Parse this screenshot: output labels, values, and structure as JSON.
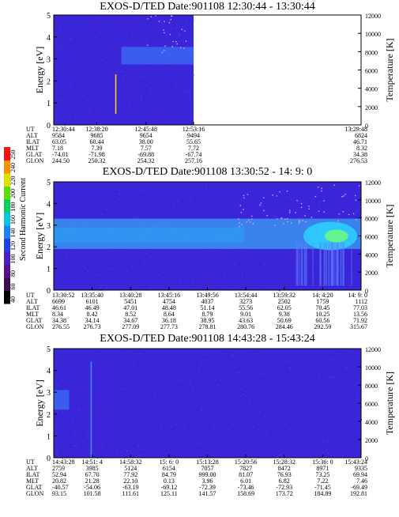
{
  "chart_data": {
    "type": "heatmap",
    "colorbar": {
      "label": "Second Harmonic Current",
      "ticks": [
        40,
        60,
        80,
        100,
        120,
        140,
        160,
        180,
        200,
        220,
        240,
        250
      ],
      "colors": [
        "#000000",
        "#3a0a52",
        "#5a0f8a",
        "#4a1fc8",
        "#2040e8",
        "#1a80ff",
        "#00c8e0",
        "#00d060",
        "#58e000",
        "#e0e000",
        "#ff9000",
        "#ff1010"
      ]
    },
    "panels": [
      {
        "title": "EXOS-D/TED   Date:901108   12:30:44 - 13:30:44",
        "ylabel": "Energy [eV]",
        "y2label": "Temperature [K]",
        "ylim": [
          0,
          5
        ],
        "yticks": [
          0,
          1,
          2,
          3,
          4,
          5
        ],
        "y2lim": [
          0,
          12000
        ],
        "y2ticks": [
          0,
          2000,
          4000,
          6000,
          8000,
          10000,
          12000
        ],
        "data_end_fraction": 0.455,
        "band": {
          "x": [
            0.22,
            0.455
          ],
          "energy_low": 2.75,
          "energy_high": 3.55,
          "color": "#3c64f0"
        },
        "ephemeris": {
          "labels": [
            "UT",
            "ALT",
            "ILAT",
            "MLT",
            "GLAT",
            "GLON"
          ],
          "columns": [
            [
              "12:30:44",
              "9584",
              "63.05",
              "7.18",
              "-74.01",
              "244.50"
            ],
            [
              "12:38:20",
              "9685",
              "60.44",
              "7.39",
              "-71.98",
              "250.32"
            ],
            [
              "12:45:48",
              "9654",
              "38.00",
              "7.57",
              "-69.88",
              "254.32"
            ],
            [
              "12:53:16",
              "9494",
              "55.65",
              "7.72",
              "-67.74",
              "257.16"
            ],
            [
              "13:29:48",
              "6824",
              "46.71",
              "8.32",
              "34.38",
              "276.53"
            ]
          ],
          "positions": [
            0,
            0.14,
            0.3,
            0.455,
            1
          ]
        }
      },
      {
        "title": "EXOS-D/TED   Date:901108   13:30:52 - 14: 9: 0",
        "ylabel": "Energy [eV]",
        "y2label": "Temperature [K]",
        "ylim": [
          0,
          5
        ],
        "yticks": [
          0,
          1,
          2,
          3,
          4,
          5
        ],
        "y2lim": [
          0,
          12000
        ],
        "y2ticks": [
          0,
          2000,
          4000,
          6000,
          8000,
          10000,
          12000
        ],
        "data_end_fraction": 1,
        "band": {
          "x": [
            0,
            1
          ],
          "energy_low": 1.9,
          "energy_high": 3.3,
          "color": "#3c8cf0"
        },
        "ephemeris": {
          "labels": [
            "UT",
            "ALT",
            "ILAT",
            "MLT",
            "GLAT",
            "GLON"
          ],
          "columns": [
            [
              "13:30:52",
              "6699",
              "46.61",
              "8.34",
              "34.38",
              "276.55"
            ],
            [
              "13:35:40",
              "6101",
              "46.49",
              "8.42",
              "34.14",
              "276.73"
            ],
            [
              "13:40:28",
              "5451",
              "47.01",
              "8.52",
              "34.67",
              "277.09"
            ],
            [
              "13:45:16",
              "4754",
              "48.48",
              "8.64",
              "36.18",
              "277.73"
            ],
            [
              "13:49:56",
              "4037",
              "51.14",
              "8.79",
              "38.95",
              "278.81"
            ],
            [
              "13:54:44",
              "3273",
              "55.56",
              "9.01",
              "43.63",
              "280.76"
            ],
            [
              "13:59:32",
              "2502",
              "62.05",
              "9.38",
              "50.69",
              "284.46"
            ],
            [
              "14: 4:20",
              "1759",
              "70.45",
              "10.25",
              "60.56",
              "292.59"
            ],
            [
              "14: 9: 0",
              "1112",
              "77.03",
              "13.56",
              "71.92",
              "315.67"
            ]
          ],
          "positions": [
            0,
            0.125,
            0.25,
            0.375,
            0.5,
            0.625,
            0.75,
            0.875,
            1
          ]
        }
      },
      {
        "title": "EXOS-D/TED   Date:901108   14:43:28 - 15:43:24",
        "ylabel": "Energy [eV]",
        "y2label": "Temperature [K]",
        "ylim": [
          0,
          5
        ],
        "yticks": [
          0,
          1,
          2,
          3,
          4,
          5
        ],
        "y2lim": [
          0,
          12000
        ],
        "y2ticks": [
          0,
          2000,
          4000,
          6000,
          8000,
          10000,
          12000
        ],
        "data_end_fraction": 1,
        "band": {
          "x": [
            0,
            0.05
          ],
          "energy_low": 2.2,
          "energy_high": 3.1,
          "color": "#3c64f0"
        },
        "ephemeris": {
          "labels": [
            "UT",
            "ALT",
            "ILAT",
            "MLT",
            "GLAT",
            "GLON"
          ],
          "columns": [
            [
              "14:43:28",
              "2759",
              "52.94",
              "20.82",
              "-40.57",
              "93.15"
            ],
            [
              "14:51: 4",
              "3985",
              "67.70",
              "21.28",
              "-54.06",
              "101.58"
            ],
            [
              "14:58:32",
              "5124",
              "77.92",
              "22.10",
              "-63.19",
              "111.61"
            ],
            [
              "15: 6: 0",
              "6154",
              "84.79",
              "0.13",
              "-69.12",
              "125.11"
            ],
            [
              "15:13:28",
              "7057",
              "999.00",
              "3.96",
              "-72.39",
              "141.57"
            ],
            [
              "15:20:56",
              "7827",
              "81.07",
              "6.01",
              "-73.46",
              "158.69"
            ],
            [
              "15:28:32",
              "8472",
              "76.93",
              "6.82",
              "-72.93",
              "173.72"
            ],
            [
              "15:36: 0",
              "8971",
              "73.25",
              "7.22",
              "-71.45",
              "184.89"
            ],
            [
              "15:43:24",
              "9335",
              "69.94",
              "7.46",
              "-69.49",
              "192.81"
            ]
          ],
          "positions": [
            0,
            0.125,
            0.25,
            0.375,
            0.5,
            0.625,
            0.75,
            0.875,
            1
          ]
        }
      }
    ]
  }
}
